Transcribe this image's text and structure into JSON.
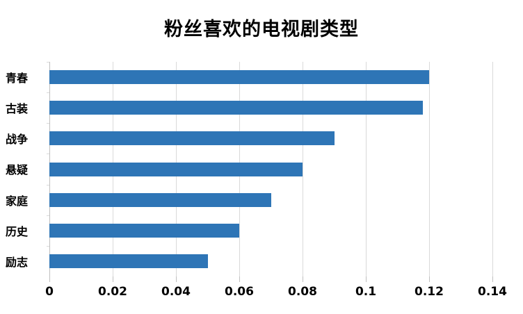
{
  "chart_data": {
    "type": "bar",
    "orientation": "horizontal",
    "title": "粉丝喜欢的电视剧类型",
    "categories": [
      "青春",
      "古装",
      "战争",
      "悬疑",
      "家庭",
      "历史",
      "励志"
    ],
    "values": [
      0.12,
      0.118,
      0.09,
      0.08,
      0.07,
      0.06,
      0.05
    ],
    "xlabel": "",
    "ylabel": "",
    "xlim": [
      0,
      0.14
    ],
    "x_ticks": [
      0,
      0.02,
      0.04,
      0.06,
      0.08,
      0.1,
      0.12,
      0.14
    ],
    "x_tick_labels": [
      "0",
      "0.02",
      "0.04",
      "0.06",
      "0.08",
      "0.1",
      "0.12",
      "0.14"
    ],
    "grid": "vertical-gridlines-on",
    "legend": "none",
    "bar_color": "#2E75B6",
    "gridline_color": "#D9D9D9",
    "zero_line_color": "#BFBFBF",
    "text_color": "#000000",
    "background_color": "#FFFFFF"
  }
}
